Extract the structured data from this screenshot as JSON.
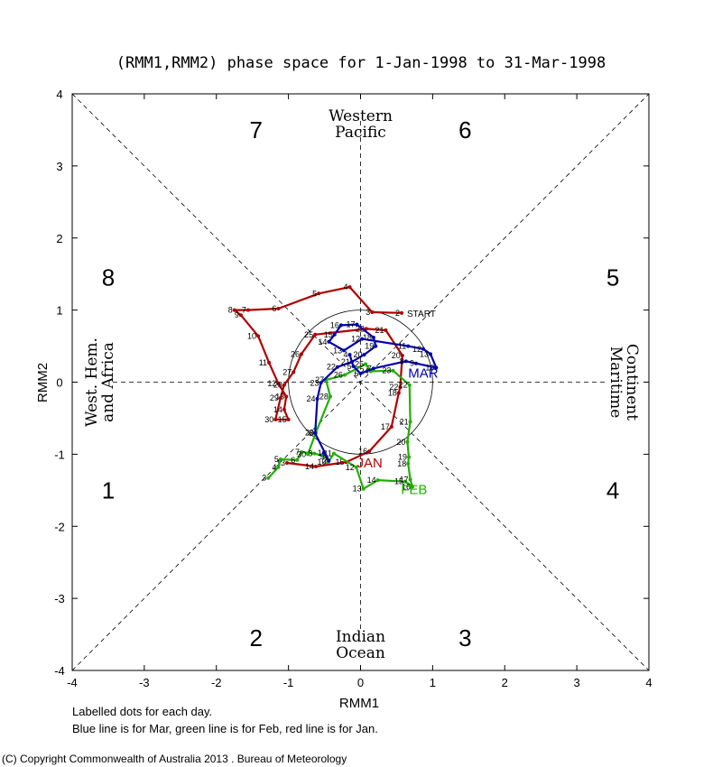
{
  "chart_data": {
    "type": "line",
    "title": "(RMM1,RMM2) phase space for  1-Jan-1998 to 31-Mar-1998",
    "xlabel": "RMM1",
    "ylabel": "RMM2",
    "xlim": [
      -4,
      4
    ],
    "ylim": [
      -4,
      4
    ],
    "x_ticks": [
      "-4",
      "-3",
      "-2",
      "-1",
      "0",
      "1",
      "2",
      "3",
      "4"
    ],
    "y_ticks": [
      "-4",
      "-3",
      "-2",
      "-1",
      "0",
      "1",
      "2",
      "3",
      "4"
    ],
    "phases": [
      {
        "label": "1",
        "x": -3.5,
        "y": -1.5
      },
      {
        "label": "2",
        "x": -1.45,
        "y": -3.55
      },
      {
        "label": "3",
        "x": 1.45,
        "y": -3.55
      },
      {
        "label": "4",
        "x": 3.5,
        "y": -1.5
      },
      {
        "label": "5",
        "x": 3.5,
        "y": 1.45
      },
      {
        "label": "6",
        "x": 1.45,
        "y": 3.5
      },
      {
        "label": "7",
        "x": -1.45,
        "y": 3.5
      },
      {
        "label": "8",
        "x": -3.5,
        "y": 1.45
      }
    ],
    "regions": {
      "top": [
        "Western",
        "Pacific"
      ],
      "bottom": [
        "Indian",
        "Ocean"
      ],
      "left": [
        "West. Hem.",
        "and Africa"
      ],
      "right": [
        "Maritime",
        "Continent"
      ]
    },
    "unit_circle_radius": 1,
    "start_label": "START",
    "series": [
      {
        "name": "JAN",
        "color": "#b00000",
        "points": [
          {
            "day": "2",
            "x": 0.57,
            "y": 0.96
          },
          {
            "day": "3",
            "x": 0.16,
            "y": 0.97
          },
          {
            "day": "4",
            "x": -0.15,
            "y": 1.32
          },
          {
            "day": "5",
            "x": -0.58,
            "y": 1.23
          },
          {
            "day": "6",
            "x": -1.14,
            "y": 1.02
          },
          {
            "day": "7",
            "x": -1.56,
            "y": 1.0
          },
          {
            "day": "8",
            "x": -1.75,
            "y": 1.0
          },
          {
            "day": "9",
            "x": -1.66,
            "y": 0.93
          },
          {
            "day": "10",
            "x": -1.42,
            "y": 0.64
          },
          {
            "day": "11",
            "x": -1.27,
            "y": 0.27
          },
          {
            "day": "12",
            "x": -1.14,
            "y": -0.02
          },
          {
            "day": "13",
            "x": -1.03,
            "y": -0.2
          },
          {
            "day": "14",
            "x": -1.06,
            "y": -0.38
          },
          {
            "day": "15",
            "x": -1.0,
            "y": -0.52
          },
          {
            "day": "30",
            "x": -1.18,
            "y": -0.52
          },
          {
            "day": "29",
            "x": -1.11,
            "y": -0.22
          },
          {
            "day": "28",
            "x": -1.06,
            "y": -0.04
          },
          {
            "day": "27",
            "x": -0.93,
            "y": 0.14
          },
          {
            "day": "26",
            "x": -0.82,
            "y": 0.39
          },
          {
            "day": "25",
            "x": -0.63,
            "y": 0.66
          },
          {
            "day": "22",
            "x": 0.08,
            "y": 0.74
          },
          {
            "day": "21",
            "x": 0.35,
            "y": 0.72
          },
          {
            "day": "20",
            "x": 0.58,
            "y": 0.37
          },
          {
            "day": "22",
            "x": 0.55,
            "y": -0.07
          },
          {
            "day": "18",
            "x": 0.53,
            "y": -0.15
          },
          {
            "day": "17",
            "x": 0.43,
            "y": -0.62
          },
          {
            "day": "16",
            "x": 0.12,
            "y": -0.96
          },
          {
            "day": "15",
            "x": -0.2,
            "y": -1.11
          },
          {
            "day": "14",
            "x": -0.62,
            "y": -1.17
          },
          {
            "day": "13",
            "x": -1.02,
            "y": -1.12
          }
        ],
        "label": "JAN",
        "label_at": [
          -0.05,
          -1.18
        ]
      },
      {
        "name": "FEB",
        "color": "#1fb000",
        "points": [
          {
            "day": "3",
            "x": -1.28,
            "y": -1.33
          },
          {
            "day": "4",
            "x": -1.14,
            "y": -1.18
          },
          {
            "day": "5",
            "x": -1.11,
            "y": -1.07
          },
          {
            "day": "6",
            "x": -0.88,
            "y": -1.08
          },
          {
            "day": "7",
            "x": -0.82,
            "y": -0.97
          },
          {
            "day": "8",
            "x": -0.64,
            "y": -0.99
          },
          {
            "day": "9",
            "x": -0.48,
            "y": -1.03
          },
          {
            "day": "10",
            "x": -0.45,
            "y": -1.11
          },
          {
            "day": "11",
            "x": -0.37,
            "y": -0.99
          },
          {
            "day": "12",
            "x": -0.06,
            "y": -1.18
          },
          {
            "day": "13",
            "x": 0.04,
            "y": -1.48
          },
          {
            "day": "14",
            "x": 0.24,
            "y": -1.36
          },
          {
            "day": "15",
            "x": 0.62,
            "y": -1.38
          },
          {
            "day": "16",
            "x": 0.72,
            "y": -1.45
          },
          {
            "day": "17",
            "x": 0.69,
            "y": -1.35
          },
          {
            "day": "18",
            "x": 0.66,
            "y": -1.13
          },
          {
            "day": "19",
            "x": 0.67,
            "y": -1.04
          },
          {
            "day": "20",
            "x": 0.65,
            "y": -0.83
          },
          {
            "day": "21",
            "x": 0.69,
            "y": -0.55
          },
          {
            "day": "22",
            "x": 0.68,
            "y": -0.04
          },
          {
            "day": "23",
            "x": 0.45,
            "y": 0.16
          },
          {
            "day": "24",
            "x": 0.14,
            "y": 0.15
          },
          {
            "day": "25",
            "x": 0.07,
            "y": 0.25
          },
          {
            "day": "26",
            "x": -0.22,
            "y": 0.1
          },
          {
            "day": "27",
            "x": -0.48,
            "y": 0.03
          },
          {
            "day": "28",
            "x": -0.42,
            "y": -0.2
          },
          {
            "day": "29",
            "x": -0.62,
            "y": -0.7
          },
          {
            "day": "30",
            "x": -0.73,
            "y": -1.0
          }
        ],
        "label": "FEB",
        "label_at": [
          0.56,
          -1.55
        ]
      },
      {
        "name": "MAR",
        "color": "#0000b0",
        "points": [
          {
            "day": "1",
            "x": -0.51,
            "y": -0.98
          },
          {
            "day": "2",
            "x": -0.44,
            "y": -1.09
          },
          {
            "day": "3",
            "x": -0.63,
            "y": -0.71
          },
          {
            "day": "24",
            "x": -0.6,
            "y": -0.23
          },
          {
            "day": "23",
            "x": -0.55,
            "y": -0.01
          },
          {
            "day": "22",
            "x": -0.32,
            "y": 0.21
          },
          {
            "day": "21",
            "x": -0.12,
            "y": 0.28
          },
          {
            "day": "20",
            "x": 0.05,
            "y": 0.38
          },
          {
            "day": "19",
            "x": 0.21,
            "y": 0.5
          },
          {
            "day": "18",
            "x": 0.18,
            "y": 0.62
          },
          {
            "day": "17",
            "x": -0.05,
            "y": 0.8
          },
          {
            "day": "16",
            "x": -0.27,
            "y": 0.79
          },
          {
            "day": "15",
            "x": -0.36,
            "y": 0.66
          },
          {
            "day": "14",
            "x": -0.44,
            "y": 0.56
          },
          {
            "day": "13",
            "x": -0.23,
            "y": 0.44
          },
          {
            "day": "12",
            "x": 0.02,
            "y": 0.6
          },
          {
            "day": "11",
            "x": 0.66,
            "y": 0.5
          },
          {
            "day": "12",
            "x": 0.87,
            "y": 0.46
          },
          {
            "day": "13",
            "x": 0.97,
            "y": 0.39
          },
          {
            "day": "10",
            "x": 1.05,
            "y": 0.2
          },
          {
            "day": "9",
            "x": 0.77,
            "y": 0.26
          },
          {
            "day": "8",
            "x": 0.63,
            "y": 0.29
          },
          {
            "day": "7",
            "x": 0.18,
            "y": 0.19
          },
          {
            "day": "6",
            "x": 0.0,
            "y": 0.12
          },
          {
            "day": "5",
            "x": -0.1,
            "y": 0.22
          },
          {
            "day": "4",
            "x": -0.15,
            "y": 0.38
          }
        ],
        "label": "MAR",
        "label_at": [
          0.66,
          0.06
        ]
      }
    ],
    "notes": [
      "Labelled dots for each day.",
      "Blue line is for Mar, green line is for Feb, red line is for Jan."
    ]
  },
  "copyright": "(C) Copyright Commonwealth of Australia 2013 . Bureau of Meteorology"
}
